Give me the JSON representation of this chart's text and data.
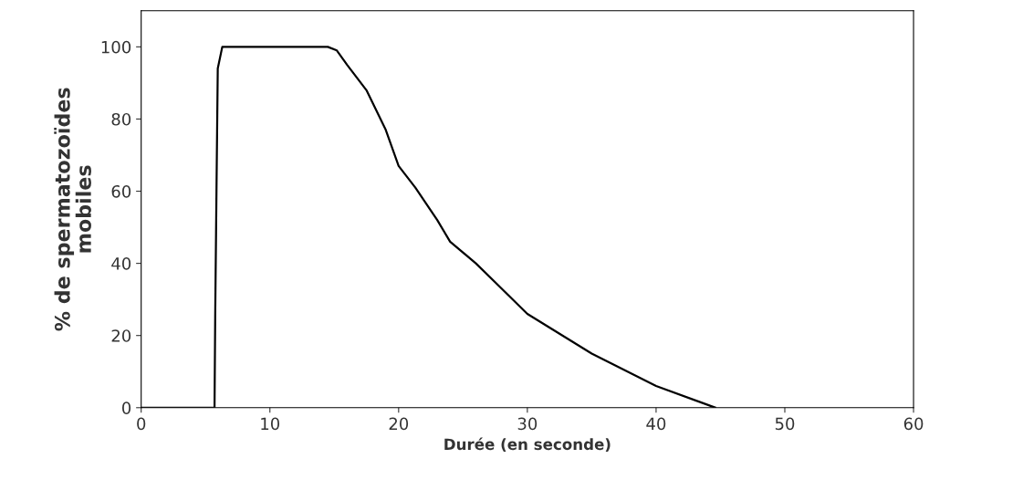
{
  "chart_data": {
    "type": "line",
    "xlabel": "Durée (en seconde)",
    "ylabel": "% de spermatozoïdes\nmobiles",
    "x": [
      0,
      5.7,
      5.75,
      5.85,
      5.95,
      6.3,
      14.5,
      15.2,
      16,
      17.5,
      19,
      20,
      21.3,
      23,
      24,
      26,
      28,
      30,
      35,
      40,
      44.6
    ],
    "series": [
      {
        "color": "#000000",
        "values": [
          0,
          0,
          25,
          60,
          94,
          100,
          100,
          99,
          95,
          88,
          77,
          67,
          61,
          52,
          46,
          40,
          33,
          26,
          15,
          6,
          0
        ]
      }
    ],
    "xlim": [
      0,
      60
    ],
    "ylim": [
      0,
      110
    ],
    "xticks": [
      0,
      10,
      20,
      30,
      40,
      50,
      60
    ],
    "yticks": [
      0,
      20,
      40,
      60,
      80,
      100
    ],
    "grid": false,
    "legend": false,
    "marker": "none",
    "line_style": "solid"
  }
}
